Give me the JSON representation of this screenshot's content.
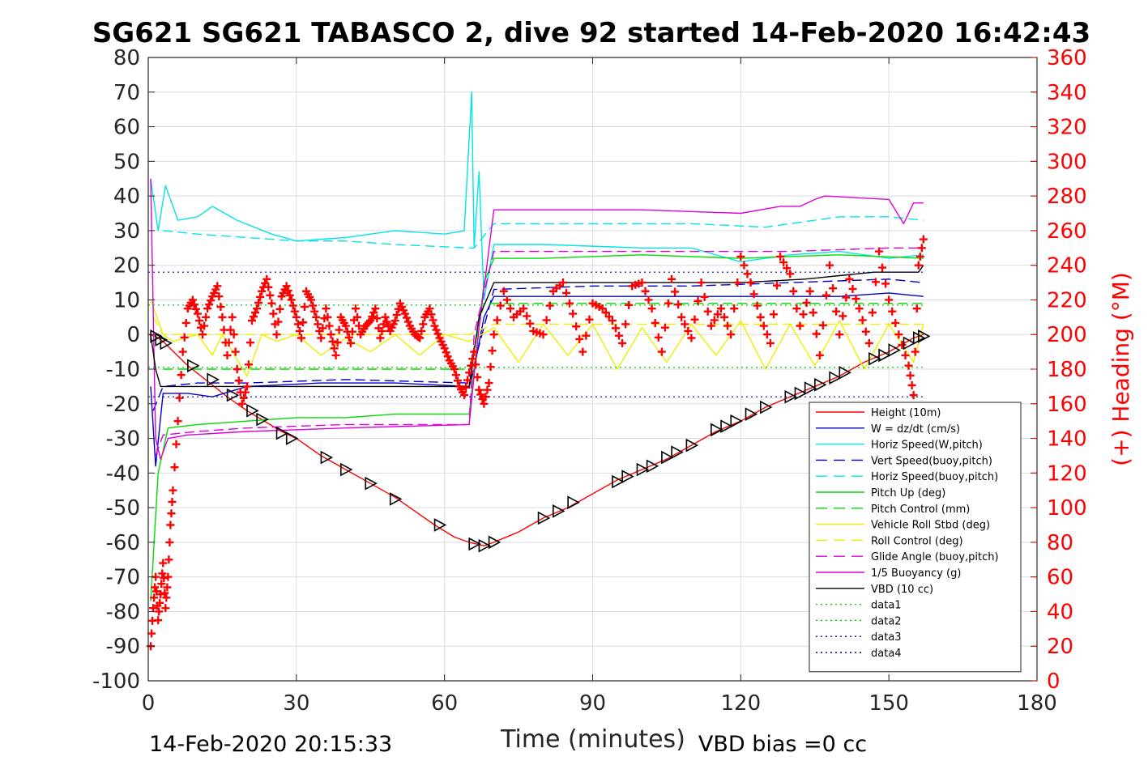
{
  "title": "SG621 SG621 TABASCO 2, dive 92 started 14-Feb-2020 16:42:43",
  "footer_left": "14-Feb-2020 20:15:33",
  "footer_right": "VBD bias =0 cc",
  "chart_data": {
    "type": "line",
    "xlabel": "Time (minutes)",
    "ylabel_right": "(+) Heading (°M)",
    "xlim": [
      0,
      180
    ],
    "ylim_left": [
      -100,
      80
    ],
    "ylim_right": [
      0,
      360
    ],
    "xticks": [
      0,
      30,
      60,
      90,
      120,
      150,
      180
    ],
    "yticks_left": [
      -100,
      -90,
      -80,
      -70,
      -60,
      -50,
      -40,
      -30,
      -20,
      -10,
      0,
      10,
      20,
      30,
      40,
      50,
      60,
      70,
      80
    ],
    "yticks_right": [
      0,
      20,
      40,
      60,
      80,
      100,
      120,
      140,
      160,
      180,
      200,
      220,
      240,
      260,
      280,
      300,
      320,
      340,
      360
    ],
    "grid": true,
    "legend_position": "bottom-right",
    "legend": [
      {
        "name": "Height (10m)",
        "color": "#ff0000",
        "dash": "solid"
      },
      {
        "name": "W = dz/dt (cm/s)",
        "color": "#0000cc",
        "dash": "solid"
      },
      {
        "name": "Horiz Speed(W,pitch)",
        "color": "#00e5e5",
        "dash": "solid"
      },
      {
        "name": "Vert Speed(buoy,pitch)",
        "color": "#0000cc",
        "dash": "dashed"
      },
      {
        "name": "Horiz Speed(buoy,pitch)",
        "color": "#00e5e5",
        "dash": "dashed"
      },
      {
        "name": "Pitch Up (deg)",
        "color": "#00dd00",
        "dash": "solid"
      },
      {
        "name": "Pitch Control (mm)",
        "color": "#00dd00",
        "dash": "dashed"
      },
      {
        "name": "Vehicle Roll Stbd (deg)",
        "color": "#eeee00",
        "dash": "solid"
      },
      {
        "name": "Roll Control (deg)",
        "color": "#eeee00",
        "dash": "dashed"
      },
      {
        "name": "Glide Angle (buoy,pitch)",
        "color": "#dd00dd",
        "dash": "dashed"
      },
      {
        "name": "1/5 Buoyancy (g)",
        "color": "#dd00dd",
        "dash": "solid"
      },
      {
        "name": "VBD (10 cc)",
        "color": "#000000",
        "dash": "solid"
      },
      {
        "name": "data1",
        "color": "#00cc00",
        "dash": "dotted"
      },
      {
        "name": "data2",
        "color": "#00cc00",
        "dash": "dotted"
      },
      {
        "name": "data3",
        "color": "#0000aa",
        "dash": "dotted"
      },
      {
        "name": "data4",
        "color": "#0000aa",
        "dash": "dotted"
      }
    ],
    "series": [
      {
        "name": "Height (10m)",
        "axis": "left",
        "color": "#ff0000",
        "dash": "solid",
        "x": [
          0,
          1.5,
          3,
          8,
          16,
          20,
          27,
          30,
          35,
          40,
          45,
          50,
          55,
          58,
          62,
          65,
          68,
          70,
          75,
          80,
          85,
          90,
          95,
          100,
          105,
          110,
          115,
          120,
          125,
          130,
          135,
          140,
          145,
          150,
          155,
          157
        ],
        "y": [
          0,
          -0.5,
          -2,
          -9,
          -18,
          -22,
          -28,
          -30,
          -35,
          -39,
          -43,
          -47,
          -52,
          -55,
          -58.5,
          -60,
          -61,
          -60,
          -57,
          -53,
          -50,
          -46,
          -42,
          -39,
          -36,
          -32,
          -28,
          -25,
          -21,
          -18,
          -15,
          -12,
          -8,
          -5,
          -1,
          0
        ]
      },
      {
        "name": "W = dz/dt (cm/s)",
        "axis": "left",
        "color": "#0000cc",
        "dash": "solid",
        "x": [
          0.5,
          1.5,
          3,
          8,
          13,
          20,
          35,
          50,
          65,
          66,
          68,
          70,
          80,
          100,
          120,
          140,
          150,
          157
        ],
        "y": [
          -15,
          -38,
          -17,
          -17,
          -18,
          -15,
          -14,
          -14,
          -15,
          -10,
          5,
          11,
          11,
          11,
          11,
          11,
          12,
          11
        ]
      },
      {
        "name": "Horiz Speed(W,pitch)",
        "axis": "left",
        "color": "#00e5e5",
        "dash": "solid",
        "x": [
          0.5,
          2,
          3.5,
          6,
          10,
          13,
          18,
          25,
          30,
          40,
          50,
          60,
          64,
          65.5,
          66,
          67,
          68,
          70,
          80,
          100,
          110,
          120,
          125,
          130,
          140,
          150,
          157
        ],
        "y": [
          45,
          30,
          43,
          33,
          34,
          37,
          33,
          29,
          27,
          28,
          30,
          29,
          30,
          70,
          25,
          47,
          10,
          26,
          26,
          25,
          25,
          21,
          22,
          23,
          24,
          22,
          23
        ]
      },
      {
        "name": "Vert Speed(buoy,pitch)",
        "axis": "left",
        "color": "#0000cc",
        "dash": "dashed",
        "x": [
          1,
          3,
          10,
          20,
          40,
          65,
          70,
          90,
          110,
          130,
          150,
          157
        ],
        "y": [
          -22,
          -15,
          -14,
          -14,
          -13,
          -14,
          13,
          14,
          14,
          15,
          16,
          15
        ]
      },
      {
        "name": "Horiz Speed(buoy,pitch)",
        "axis": "left",
        "color": "#00e5e5",
        "dash": "dashed",
        "x": [
          3,
          10,
          20,
          30,
          40,
          50,
          65,
          66,
          70,
          90,
          110,
          125,
          130,
          140,
          150,
          157
        ],
        "y": [
          30,
          29,
          28,
          27,
          27,
          26,
          25,
          25,
          32,
          32,
          32,
          31,
          32,
          34,
          34,
          33
        ]
      },
      {
        "name": "Pitch Up (deg)",
        "axis": "left",
        "color": "#00dd00",
        "dash": "solid",
        "x": [
          0.5,
          2,
          4,
          10,
          20,
          30,
          40,
          50,
          65,
          68,
          70,
          80,
          100,
          120,
          140,
          157
        ],
        "y": [
          -77,
          -40,
          -27,
          -26,
          -25,
          -24,
          -24,
          -23,
          -23,
          15,
          22,
          22,
          23,
          22,
          23,
          22
        ]
      },
      {
        "name": "Pitch Control (mm)",
        "axis": "left",
        "color": "#00dd00",
        "dash": "dashed",
        "x": [
          3,
          65,
          68,
          157
        ],
        "y": [
          -10,
          -10,
          9,
          9
        ]
      },
      {
        "name": "Vehicle Roll Stbd (deg)",
        "axis": "left",
        "color": "#eeee00",
        "dash": "solid",
        "x": [
          0.5,
          3,
          5,
          10,
          13,
          15,
          20,
          23,
          26,
          30,
          35,
          40,
          45,
          50,
          55,
          60,
          65,
          70,
          75,
          80,
          85,
          90,
          95,
          100,
          105,
          110,
          115,
          120,
          125,
          130,
          135,
          140,
          145,
          150,
          155,
          157
        ],
        "y": [
          10,
          0,
          -2,
          0,
          -6,
          0,
          -12,
          0,
          -2,
          0,
          -6,
          -1,
          -5,
          0,
          -6,
          0,
          -2,
          2,
          -8,
          3,
          -6,
          3,
          -10,
          2,
          -8,
          3,
          -6,
          4,
          -10,
          3,
          -9,
          4,
          -10,
          3,
          -8,
          3
        ]
      },
      {
        "name": "Roll Control (deg)",
        "axis": "left",
        "color": "#eeee00",
        "dash": "dashed",
        "x": [
          1,
          3,
          65,
          70,
          157
        ],
        "y": [
          5,
          0,
          0,
          3,
          3
        ]
      },
      {
        "name": "Glide Angle (buoy,pitch)",
        "axis": "left",
        "color": "#dd00dd",
        "dash": "dashed",
        "x": [
          1.5,
          3,
          10,
          20,
          40,
          65,
          66,
          70,
          100,
          130,
          150,
          157
        ],
        "y": [
          -35,
          -29,
          -28,
          -27,
          -26,
          -26,
          0,
          24,
          24,
          24,
          25,
          25
        ]
      },
      {
        "name": "1/5 Buoyancy (g)",
        "axis": "left",
        "color": "#dd00dd",
        "dash": "solid",
        "x": [
          0.5,
          1.5,
          2.5,
          4,
          8,
          20,
          40,
          65,
          67,
          70,
          100,
          120,
          128,
          132,
          135,
          137,
          150,
          153,
          155,
          157
        ],
        "y": [
          45,
          -30,
          -36,
          -30,
          -29,
          -28,
          -27,
          -26,
          2,
          36,
          36,
          35,
          37,
          37,
          39,
          40,
          39,
          32,
          38,
          38
        ]
      },
      {
        "name": "VBD (10 cc)",
        "axis": "left",
        "color": "#000000",
        "dash": "solid",
        "x": [
          0.5,
          1.5,
          2.5,
          6,
          20,
          40,
          65,
          67,
          70,
          90,
          110,
          120,
          133,
          140,
          147,
          156,
          157
        ],
        "y": [
          0,
          -10,
          -15,
          -15,
          -15,
          -15,
          -15,
          5,
          15,
          15,
          15,
          15,
          16,
          17,
          18,
          18,
          20
        ]
      },
      {
        "name": "data1",
        "axis": "left",
        "color": "#00cc00",
        "dash": "dotted",
        "x": [
          0,
          157
        ],
        "y": [
          -9.5,
          -9.5
        ]
      },
      {
        "name": "data2",
        "axis": "left",
        "color": "#00cc00",
        "dash": "dotted",
        "x": [
          0,
          157
        ],
        "y": [
          8.5,
          8.5
        ]
      },
      {
        "name": "data3",
        "axis": "left",
        "color": "#0000aa",
        "dash": "dotted",
        "x": [
          0,
          157
        ],
        "y": [
          -18,
          -18
        ]
      },
      {
        "name": "data4",
        "axis": "left",
        "color": "#0000aa",
        "dash": "dotted",
        "x": [
          0,
          157
        ],
        "y": [
          18,
          18
        ]
      }
    ],
    "heading": {
      "name": "(+) Heading (°M)",
      "axis": "right",
      "color": "#ff0000",
      "marker": "+",
      "x": [
        0.5,
        1,
        1.5,
        2,
        2.5,
        3,
        3.5,
        4,
        4.5,
        5,
        6,
        7,
        8,
        9,
        10,
        11,
        12,
        13,
        14,
        15,
        16,
        17,
        18,
        19,
        20,
        21,
        22,
        23,
        24,
        25,
        26,
        27,
        28,
        29,
        30,
        31,
        32,
        33,
        34,
        35,
        36,
        37,
        38,
        39,
        40,
        41,
        42,
        43,
        44,
        45,
        46,
        47,
        48,
        49,
        50,
        51,
        52,
        53,
        54,
        55,
        56,
        57,
        58,
        59,
        60,
        61,
        62,
        63,
        64,
        65,
        66,
        67,
        68,
        69,
        70,
        72,
        74,
        76,
        78,
        80,
        82,
        84,
        86,
        88,
        90,
        92,
        94,
        96,
        98,
        100,
        102,
        104,
        106,
        108,
        110,
        112,
        114,
        116,
        118,
        120,
        122,
        124,
        126,
        128,
        130,
        132,
        134,
        136,
        138,
        140,
        142,
        144,
        146,
        148,
        150,
        152,
        154,
        155,
        156,
        157
      ],
      "y": [
        20,
        42,
        60,
        35,
        50,
        68,
        42,
        60,
        90,
        110,
        150,
        190,
        215,
        220,
        212,
        200,
        215,
        222,
        228,
        210,
        188,
        210,
        180,
        160,
        170,
        208,
        215,
        225,
        232,
        218,
        200,
        222,
        228,
        220,
        210,
        198,
        225,
        220,
        210,
        198,
        215,
        200,
        188,
        210,
        205,
        195,
        215,
        200,
        205,
        208,
        215,
        198,
        210,
        202,
        208,
        218,
        212,
        205,
        200,
        198,
        210,
        215,
        205,
        198,
        192,
        185,
        180,
        170,
        165,
        178,
        190,
        168,
        160,
        172,
        200,
        225,
        210,
        215,
        202,
        200,
        225,
        230,
        212,
        190,
        218,
        215,
        208,
        195,
        228,
        230,
        215,
        190,
        232,
        210,
        198,
        230,
        205,
        215,
        200,
        245,
        230,
        210,
        195,
        245,
        235,
        205,
        225,
        188,
        240,
        200,
        232,
        215,
        195,
        248,
        220,
        200,
        182,
        165,
        240,
        255
      ]
    },
    "dive_markers": {
      "name": "sample markers",
      "axis": "left",
      "color": "#000000",
      "marker": "triangle-right",
      "x": [
        1.5,
        2.5,
        3.5,
        9,
        13,
        17,
        21,
        23,
        27,
        29,
        36,
        40,
        45,
        50,
        59,
        66,
        68,
        70,
        80,
        83,
        86,
        95,
        97,
        100,
        102,
        105,
        107,
        110,
        115,
        117,
        119,
        122,
        125,
        130,
        132,
        134,
        136,
        139,
        141,
        147,
        149,
        151,
        154,
        156,
        157
      ],
      "y": [
        -0.5,
        -1.5,
        -2.5,
        -9,
        -13,
        -17.5,
        -22,
        -24.5,
        -28.5,
        -30,
        -35.5,
        -39,
        -43,
        -47.5,
        -55,
        -60.5,
        -61,
        -60,
        -53,
        -51,
        -48.5,
        -42.5,
        -41,
        -39,
        -38,
        -35.5,
        -34,
        -32,
        -27.5,
        -26.5,
        -25,
        -23,
        -21,
        -18,
        -17,
        -15.5,
        -14.5,
        -12.5,
        -11,
        -7,
        -6,
        -4.5,
        -2.5,
        -1,
        -0.5
      ]
    }
  }
}
